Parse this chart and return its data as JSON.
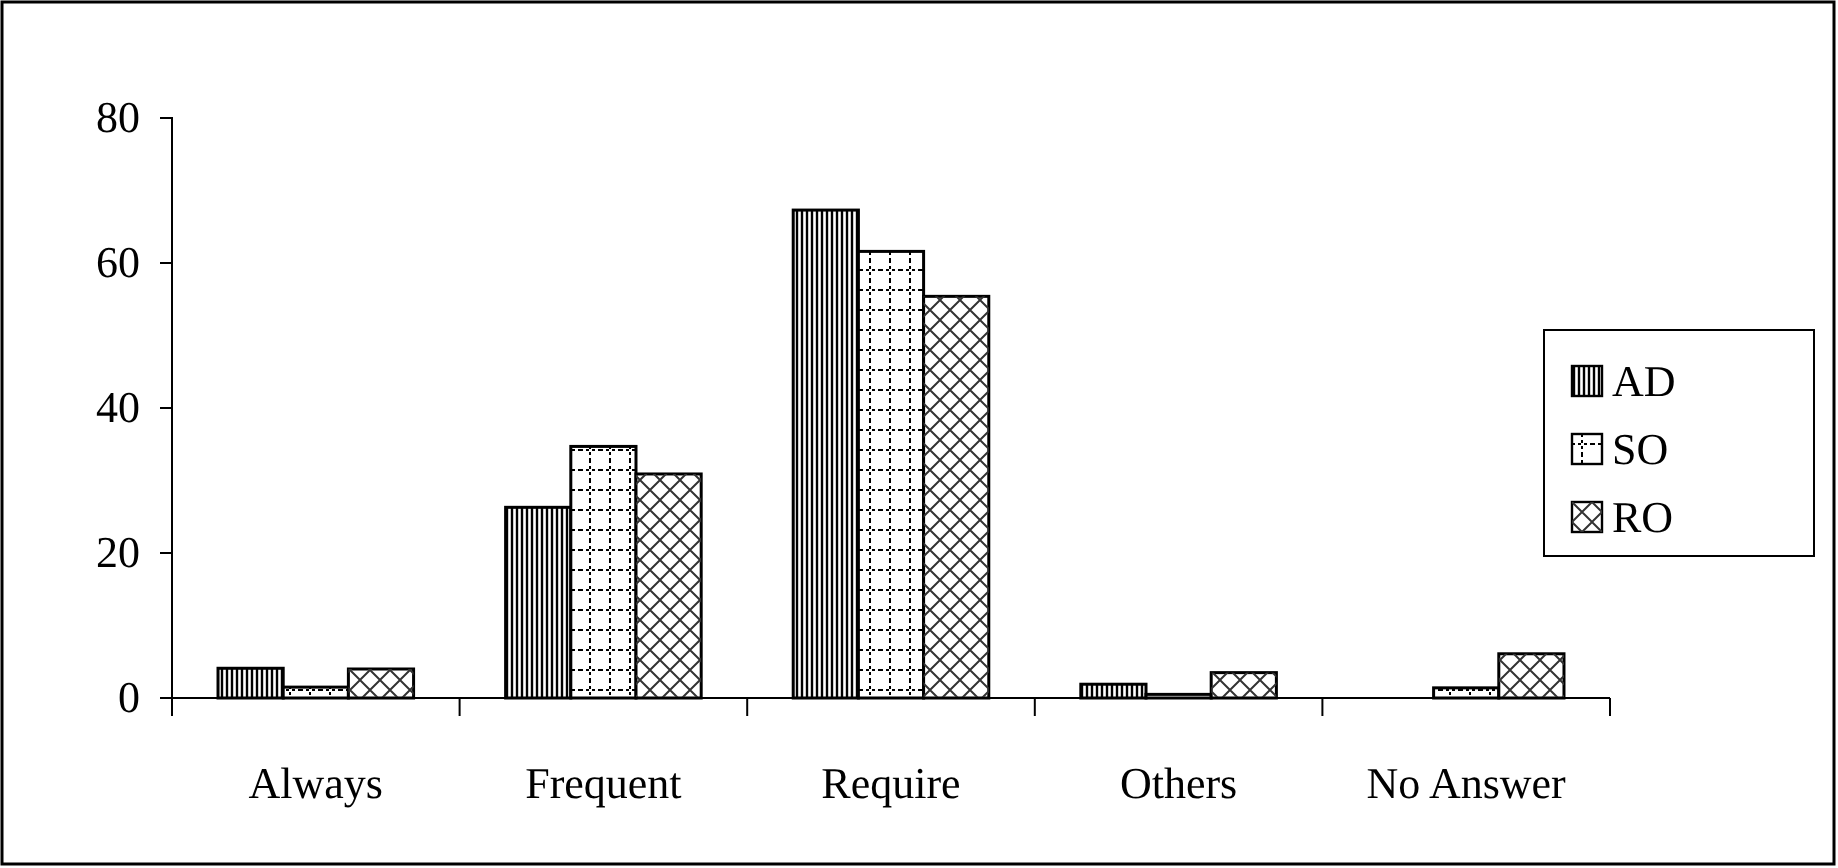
{
  "chart_data": {
    "type": "bar",
    "categories": [
      "Always",
      "Frequent",
      "Require",
      "Others",
      "No Answer"
    ],
    "series": [
      {
        "name": "AD",
        "color": "#ffffff",
        "values": [
          4.1,
          26.3,
          67.3,
          1.9,
          0
        ]
      },
      {
        "name": "SO",
        "color": "#ffffff",
        "values": [
          1.5,
          34.7,
          61.6,
          0.5,
          1.4
        ]
      },
      {
        "name": "RO",
        "color": "#ffffff",
        "values": [
          4,
          30.9,
          55.4,
          3.5,
          6.1
        ]
      }
    ],
    "ylim": [
      0,
      80
    ],
    "yticks": [
      0,
      20,
      40,
      60,
      80
    ],
    "grid": false,
    "legend": "right"
  }
}
